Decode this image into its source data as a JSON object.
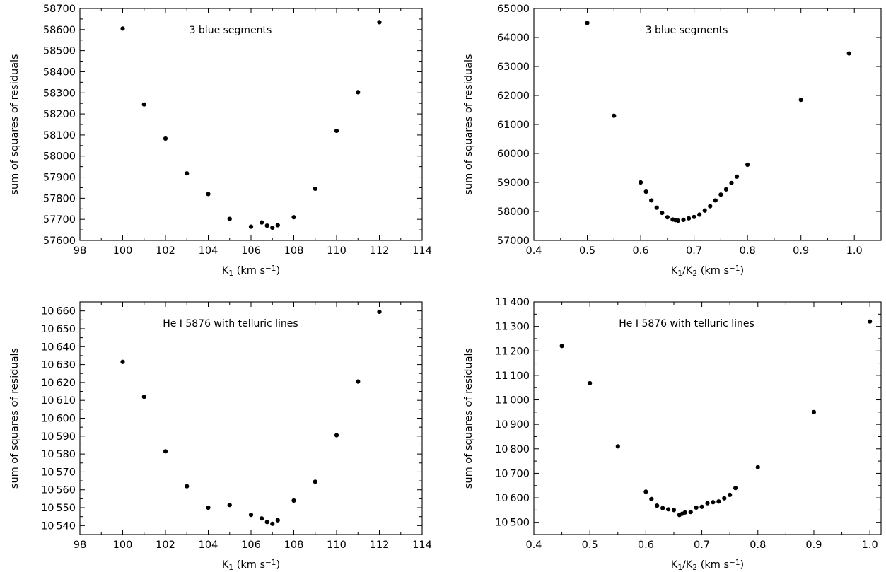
{
  "chart_data": [
    {
      "type": "scatter",
      "annotation": "3 blue segments",
      "xlabel": {
        "base": "K",
        "sub": "1",
        "unit_pre": " (km s",
        "sup": "−1",
        "unit_post": ")"
      },
      "ylabel": "sum of squares of residuals",
      "xlim": [
        98,
        114
      ],
      "ylim": [
        57600,
        58700
      ],
      "xticks": [
        98,
        100,
        102,
        104,
        106,
        108,
        110,
        112,
        114
      ],
      "yticks": [
        57600,
        57700,
        57800,
        57900,
        58000,
        58100,
        58200,
        58300,
        58400,
        58500,
        58600,
        58700
      ],
      "x_decimals": 0,
      "y_decimals": 0,
      "y_thousand_sep": false,
      "points": [
        [
          100,
          58605
        ],
        [
          101,
          58245
        ],
        [
          102,
          58083
        ],
        [
          103,
          57918
        ],
        [
          104,
          57820
        ],
        [
          105,
          57702
        ],
        [
          106,
          57665
        ],
        [
          106.5,
          57685
        ],
        [
          106.75,
          57670
        ],
        [
          107,
          57660
        ],
        [
          107.25,
          57672
        ],
        [
          108,
          57710
        ],
        [
          109,
          57845
        ],
        [
          110,
          58120
        ],
        [
          111,
          58303
        ],
        [
          112,
          58635
        ]
      ]
    },
    {
      "type": "scatter",
      "annotation": "3 blue segments",
      "xlabel": {
        "base": "K",
        "sub": "1",
        "mid": "/K",
        "sub2": "2",
        "unit_pre": " (km s",
        "sup": "−1",
        "unit_post": ")"
      },
      "ylabel": "sum of squares of residuals",
      "xlim": [
        0.4,
        1.05
      ],
      "ylim": [
        57000,
        65000
      ],
      "xticks": [
        0.4,
        0.5,
        0.6,
        0.7,
        0.8,
        0.9,
        1.0
      ],
      "yticks": [
        57000,
        58000,
        59000,
        60000,
        61000,
        62000,
        63000,
        64000,
        65000
      ],
      "x_decimals": 1,
      "y_decimals": 0,
      "y_thousand_sep": false,
      "points": [
        [
          0.5,
          64500
        ],
        [
          0.55,
          61300
        ],
        [
          0.6,
          59000
        ],
        [
          0.61,
          58680
        ],
        [
          0.62,
          58380
        ],
        [
          0.63,
          58130
        ],
        [
          0.64,
          57950
        ],
        [
          0.65,
          57800
        ],
        [
          0.66,
          57720
        ],
        [
          0.665,
          57700
        ],
        [
          0.67,
          57680
        ],
        [
          0.68,
          57710
        ],
        [
          0.69,
          57760
        ],
        [
          0.7,
          57810
        ],
        [
          0.71,
          57890
        ],
        [
          0.72,
          58030
        ],
        [
          0.73,
          58180
        ],
        [
          0.74,
          58380
        ],
        [
          0.75,
          58580
        ],
        [
          0.76,
          58760
        ],
        [
          0.77,
          58980
        ],
        [
          0.78,
          59200
        ],
        [
          0.8,
          59610
        ],
        [
          0.9,
          61850
        ],
        [
          0.99,
          63450
        ]
      ]
    },
    {
      "type": "scatter",
      "annotation": "He I 5876 with telluric lines",
      "xlabel": {
        "base": "K",
        "sub": "1",
        "unit_pre": " (km s",
        "sup": "−1",
        "unit_post": ")"
      },
      "ylabel": "sum of squares of residuals",
      "xlim": [
        98,
        114
      ],
      "ylim": [
        10535,
        10665
      ],
      "xticks": [
        98,
        100,
        102,
        104,
        106,
        108,
        110,
        112,
        114
      ],
      "yticks": [
        10540,
        10550,
        10560,
        10570,
        10580,
        10590,
        10600,
        10610,
        10620,
        10630,
        10640,
        10650,
        10660
      ],
      "x_decimals": 0,
      "y_decimals": 0,
      "y_thousand_sep": true,
      "points": [
        [
          100,
          10631.5
        ],
        [
          101,
          10612
        ],
        [
          102,
          10581.5
        ],
        [
          103,
          10562
        ],
        [
          104,
          10550
        ],
        [
          105,
          10551.5
        ],
        [
          106,
          10546
        ],
        [
          106.5,
          10544
        ],
        [
          106.75,
          10542
        ],
        [
          107,
          10541
        ],
        [
          107.25,
          10543
        ],
        [
          108,
          10554
        ],
        [
          109,
          10564.5
        ],
        [
          110,
          10590.5
        ],
        [
          111,
          10620.5
        ],
        [
          112,
          10659.5
        ]
      ]
    },
    {
      "type": "scatter",
      "annotation": "He I 5876 with telluric lines",
      "xlabel": {
        "base": "K",
        "sub": "1",
        "mid": "/K",
        "sub2": "2",
        "unit_pre": " (km s",
        "sup": "−1",
        "unit_post": ")"
      },
      "ylabel": "sum of squares of residuals",
      "xlim": [
        0.4,
        1.02
      ],
      "ylim": [
        10450,
        11400
      ],
      "xticks": [
        0.4,
        0.5,
        0.6,
        0.7,
        0.8,
        0.9,
        1.0
      ],
      "yticks": [
        10500,
        10600,
        10700,
        10800,
        10900,
        11000,
        11100,
        11200,
        11300,
        11400
      ],
      "x_decimals": 1,
      "y_decimals": 0,
      "y_thousand_sep": true,
      "points": [
        [
          0.45,
          11220
        ],
        [
          0.5,
          11068
        ],
        [
          0.55,
          10810
        ],
        [
          0.6,
          10625
        ],
        [
          0.61,
          10595
        ],
        [
          0.62,
          10568
        ],
        [
          0.63,
          10558
        ],
        [
          0.64,
          10553
        ],
        [
          0.65,
          10550
        ],
        [
          0.66,
          10530
        ],
        [
          0.665,
          10535
        ],
        [
          0.67,
          10540
        ],
        [
          0.68,
          10542
        ],
        [
          0.69,
          10560
        ],
        [
          0.7,
          10563
        ],
        [
          0.71,
          10578
        ],
        [
          0.72,
          10582
        ],
        [
          0.73,
          10585
        ],
        [
          0.74,
          10598
        ],
        [
          0.75,
          10612
        ],
        [
          0.76,
          10640
        ],
        [
          0.8,
          10725
        ],
        [
          0.9,
          10950
        ],
        [
          1.0,
          11320
        ]
      ]
    }
  ]
}
